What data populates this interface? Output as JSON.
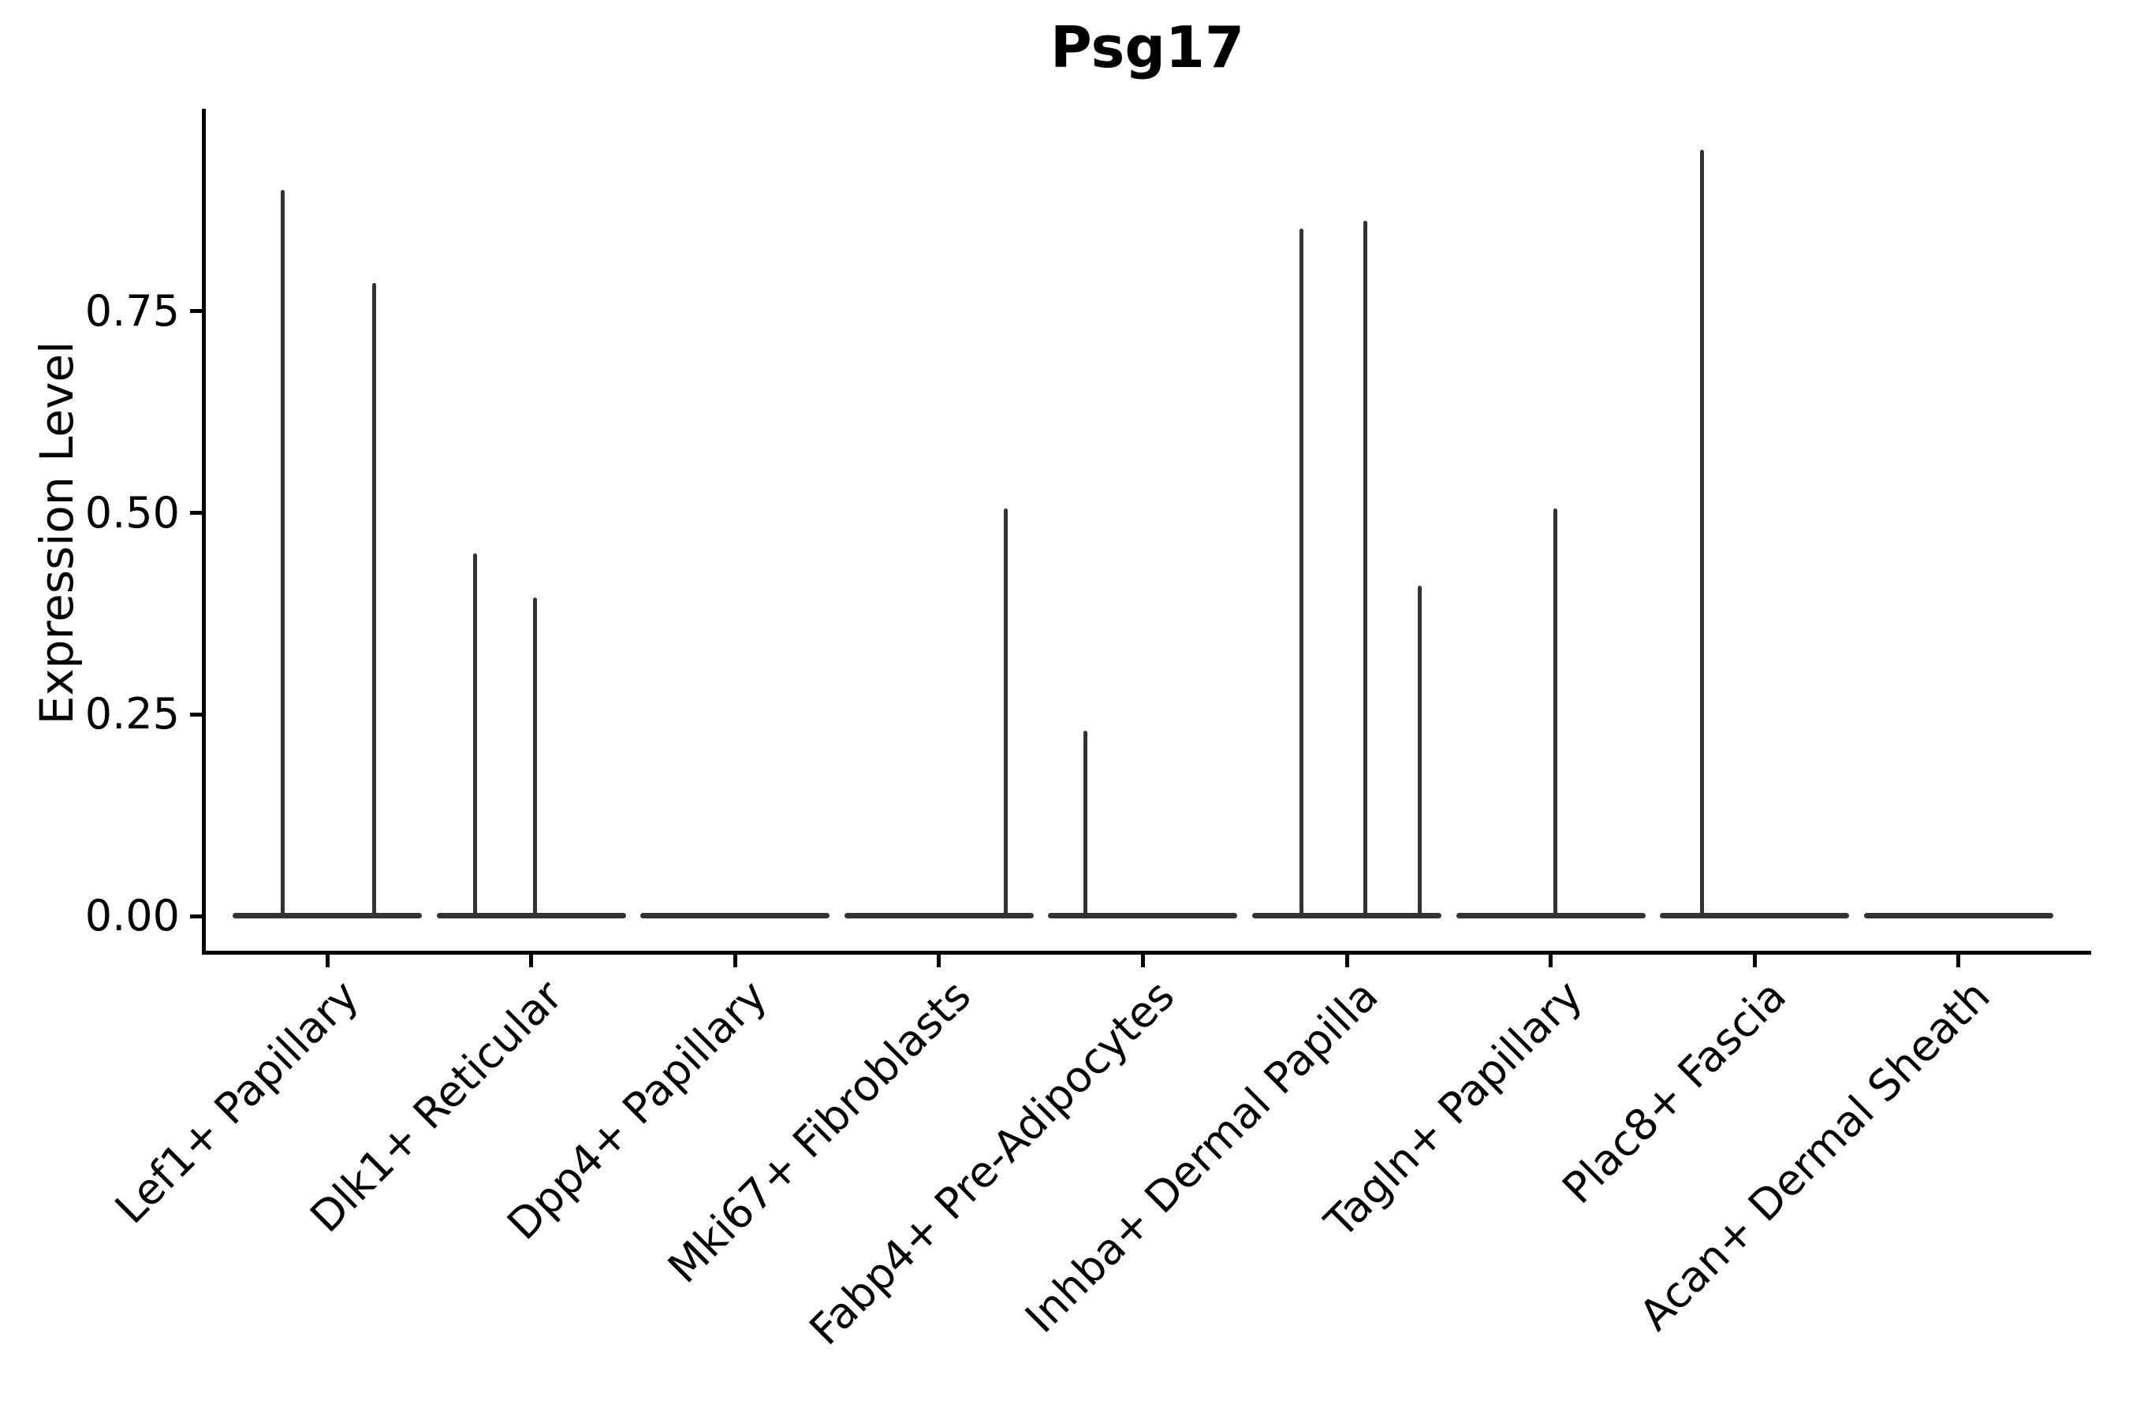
{
  "figure": {
    "title": "Psg17",
    "background": "#ffffff"
  },
  "axes": {
    "ylabel": "Expression Level",
    "xlabel": "",
    "ytick_labels": [
      "0.00",
      "0.25",
      "0.50",
      "0.75"
    ],
    "ytick_values": [
      0,
      0.25,
      0.5,
      0.75
    ]
  },
  "colors": {
    "violin": "#333333",
    "axis": "#000000",
    "text": "#000000"
  },
  "chart_data": {
    "type": "violin",
    "title": "Psg17",
    "ylabel": "Expression Level",
    "xlabel": "",
    "ylim": [
      -0.045,
      1.0
    ],
    "yticks": [
      0,
      0.25,
      0.5,
      0.75
    ],
    "grid": false,
    "legend": null,
    "categories": [
      "Lef1+ Papillary",
      "Dlk1+ Reticular",
      "Dpp4+ Papillary",
      "Mki67+ Fibroblasts",
      "Fabp4+ Pre-Adipocytes",
      "Inhba+ Dermal Papilla",
      "Tagln+ Papillary",
      "Plac8+ Fascia",
      "Acan+ Dermal Sheath"
    ],
    "note": "Each category shows a collapsed violin (flat bar at expression 0) with thin density spikes; 'pos' is the spike offset within the category slot (fraction of slot width), 'peak' is the maximum expression level the spike reaches.",
    "violins": [
      {
        "category": "Lef1+ Papillary",
        "baseline": 0,
        "spikes": [
          {
            "pos": -0.22,
            "peak": 0.9
          },
          {
            "pos": 0.232,
            "peak": 0.785
          }
        ]
      },
      {
        "category": "Dlk1+ Reticular",
        "baseline": 0,
        "spikes": [
          {
            "pos": -0.275,
            "peak": 0.45
          },
          {
            "pos": 0.019,
            "peak": 0.395
          }
        ]
      },
      {
        "category": "Dpp4+ Papillary",
        "baseline": 0,
        "spikes": []
      },
      {
        "category": "Mki67+ Fibroblasts",
        "baseline": 0,
        "spikes": [
          {
            "pos": 0.329,
            "peak": 0.505
          }
        ]
      },
      {
        "category": "Fabp4+ Pre-Adipocytes",
        "baseline": 0,
        "spikes": [
          {
            "pos": -0.282,
            "peak": 0.23
          }
        ]
      },
      {
        "category": "Inhba+ Dermal Papilla",
        "baseline": 0,
        "spikes": [
          {
            "pos": -0.224,
            "peak": 0.852
          },
          {
            "pos": 0.089,
            "peak": 0.862
          },
          {
            "pos": 0.356,
            "peak": 0.41
          }
        ]
      },
      {
        "category": "Tagln+ Papillary",
        "baseline": 0,
        "spikes": [
          {
            "pos": 0.023,
            "peak": 0.505
          }
        ]
      },
      {
        "category": "Plac8+ Fascia",
        "baseline": 0,
        "spikes": [
          {
            "pos": -0.259,
            "peak": 0.95
          }
        ]
      },
      {
        "category": "Acan+ Dermal Sheath",
        "baseline": 0,
        "spikes": []
      }
    ]
  }
}
